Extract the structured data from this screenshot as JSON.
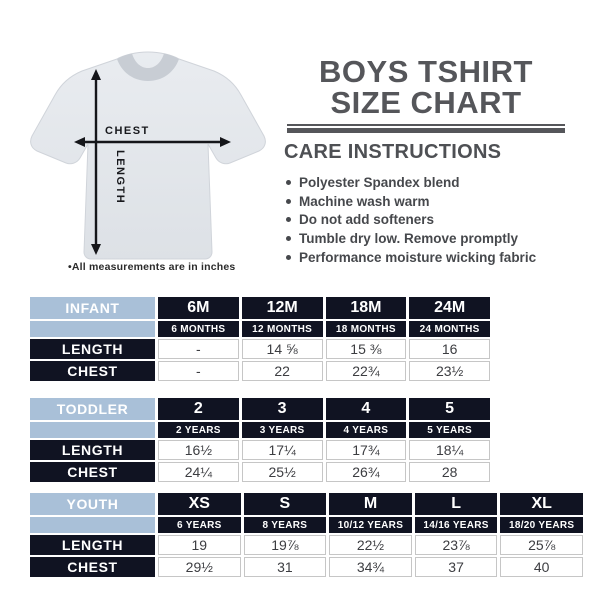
{
  "diagram": {
    "chest_label": "CHEST",
    "length_label": "LENGTH",
    "footnote": "•All measurements are in inches"
  },
  "header": {
    "title_line1": "BOYS TSHIRT",
    "title_line2": "SIZE CHART"
  },
  "care": {
    "heading": "CARE INSTRUCTIONS",
    "items": [
      "Polyester Spandex blend",
      "Machine wash warm",
      "Do not add softeners",
      "Tumble dry low. Remove promptly",
      "Performance moisture wicking fabric"
    ]
  },
  "colors": {
    "navy": "#101322",
    "light_blue": "#a9c0d8",
    "heading_gray": "#55565a",
    "shirt_gray": "#e3e6ea"
  },
  "tables": [
    {
      "group_label": "INFANT",
      "columns": [
        {
          "size": "6M",
          "sub": "6 MONTHS"
        },
        {
          "size": "12M",
          "sub": "12 MONTHS"
        },
        {
          "size": "18M",
          "sub": "18 MONTHS"
        },
        {
          "size": "24M",
          "sub": "24 MONTHS"
        }
      ],
      "rows": [
        {
          "label": "LENGTH",
          "values": [
            "-",
            "14 ⅝",
            "15 ⅜",
            "16"
          ]
        },
        {
          "label": "CHEST",
          "values": [
            "-",
            "22",
            "22¾",
            "23½"
          ]
        }
      ]
    },
    {
      "group_label": "TODDLER",
      "columns": [
        {
          "size": "2",
          "sub": "2 YEARS"
        },
        {
          "size": "3",
          "sub": "3 YEARS"
        },
        {
          "size": "4",
          "sub": "4 YEARS"
        },
        {
          "size": "5",
          "sub": "5 YEARS"
        }
      ],
      "rows": [
        {
          "label": "LENGTH",
          "values": [
            "16½",
            "17¼",
            "17¾",
            "18¼"
          ]
        },
        {
          "label": "CHEST",
          "values": [
            "24¼",
            "25½",
            "26¾",
            "28"
          ]
        }
      ]
    },
    {
      "group_label": "YOUTH",
      "columns": [
        {
          "size": "XS",
          "sub": "6 YEARS"
        },
        {
          "size": "S",
          "sub": "8 YEARS"
        },
        {
          "size": "M",
          "sub": "10/12 YEARS"
        },
        {
          "size": "L",
          "sub": "14/16 YEARS"
        },
        {
          "size": "XL",
          "sub": "18/20 YEARS"
        }
      ],
      "rows": [
        {
          "label": "LENGTH",
          "values": [
            "19",
            "19⅞",
            "22½",
            "23⅞",
            "25⅞"
          ]
        },
        {
          "label": "CHEST",
          "values": [
            "29½",
            "31",
            "34¾",
            "37",
            "40"
          ]
        }
      ]
    }
  ]
}
